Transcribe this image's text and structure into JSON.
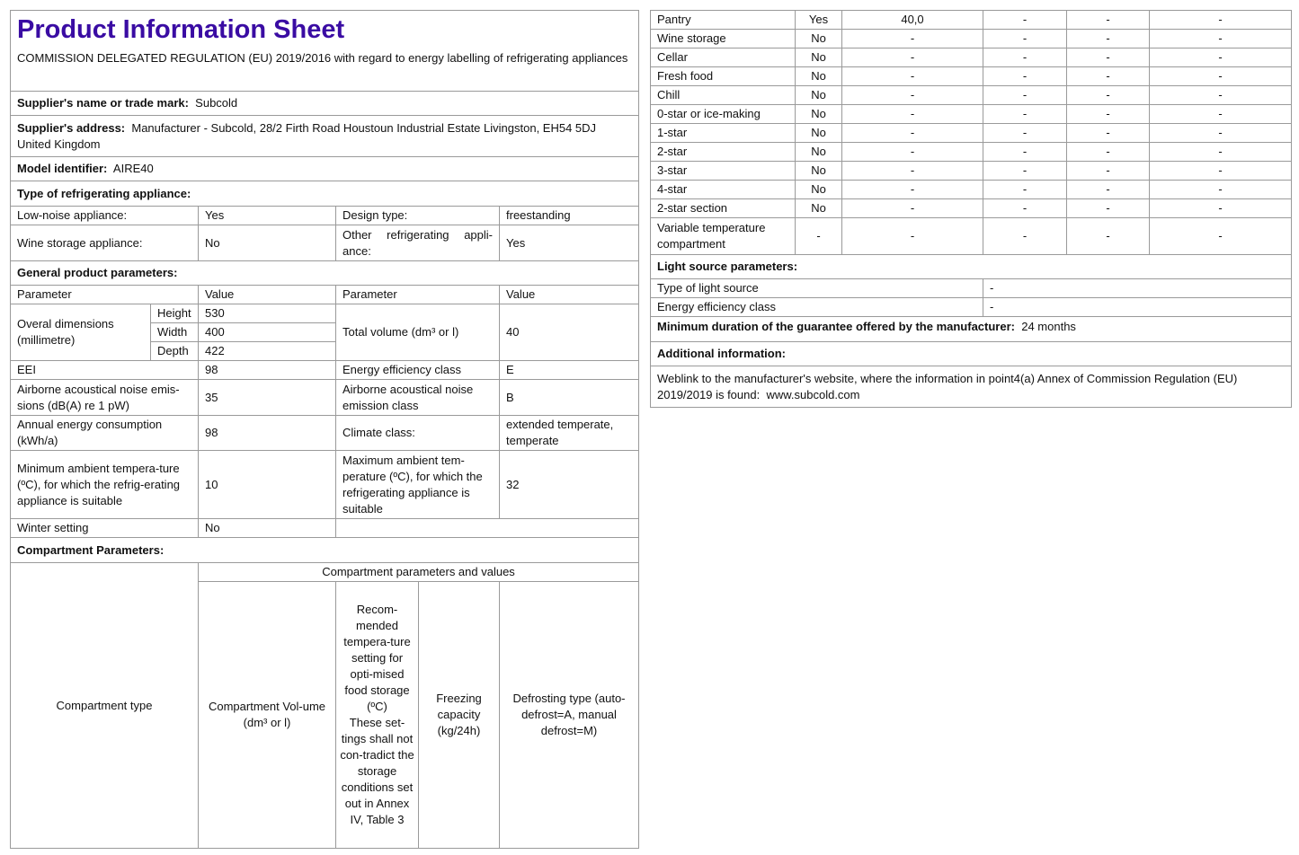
{
  "title": "Product Information Sheet",
  "regulation": "COMMISSION DELEGATED REGULATION (EU) 2019/2016 with regard to energy labelling of refrigerating appliances",
  "supplier_name": {
    "label": "Supplier's name or trade mark:",
    "value": "Subcold"
  },
  "supplier_address": {
    "label": "Supplier's address:",
    "value": "Manufacturer - Subcold, 28/2 Firth Road Houstoun Industrial Estate Livingston, EH54 5DJ United Kingdom"
  },
  "model": {
    "label": "Model identifier:",
    "value": "AIRE40"
  },
  "type_heading": "Type of refrigerating appliance:",
  "type": {
    "low_noise_label": "Low-noise appliance:",
    "low_noise": "Yes",
    "design_label": "Design type:",
    "design": "freestanding",
    "wine_label": "Wine storage appliance:",
    "wine": "No",
    "other_label": "Other refrigerating appli-ance:",
    "other": "Yes"
  },
  "general_heading": "General product parameters:",
  "general": {
    "param_h": "Parameter",
    "value_h": "Value",
    "dims_label": "Overal dimensions (millimetre)",
    "height_label": "Height",
    "height": "530",
    "width_label": "Width",
    "width": "400",
    "depth_label": "Depth",
    "depth": "422",
    "volume_label": "Total volume (dm³ or l)",
    "volume": "40",
    "eei_label": "EEI",
    "eei": "98",
    "eclass_label": "Energy efficiency class",
    "eclass": "E",
    "noise_label": "Airborne acoustical noise emis-sions (dB(A) re 1 pW)",
    "noise": "35",
    "noise_class_label": "Airborne acoustical noise emission class",
    "noise_class": "B",
    "annual_label": "Annual energy consumption (kWh/a)",
    "annual": "98",
    "climate_label": "Climate class:",
    "climate": "extended temperate, temperate",
    "min_amb_label": "Minimum ambient tempera-ture (ºC), for which the refrig-erating appliance is suitable",
    "min_amb": "10",
    "max_amb_label": "Maximum ambient tem-perature (ºC), for which the refrigerating appliance is suitable",
    "max_amb": "32",
    "winter_label": "Winter setting",
    "winter": "No"
  },
  "compartment_heading": "Compartment Parameters:",
  "compartment_headers": {
    "type": "Compartment type",
    "group": "Compartment parameters and values",
    "volume": "Compartment Vol-ume (dm³ or l)",
    "temp": "Recom-mended tempera-ture setting for opti-mised food storage (ºC)",
    "temp_note": "These set-tings shall not con-tradict the storage conditions set out in Annex IV, Table 3",
    "freezing": "Freezing capacity (kg/24h)",
    "defrost": "Defrosting type (auto-defrost=A, manual defrost=M)"
  },
  "compartments": [
    [
      "Pantry",
      "Yes",
      "40,0",
      "-",
      "-",
      "-"
    ],
    [
      "Wine storage",
      "No",
      "-",
      "-",
      "-",
      "-"
    ],
    [
      "Cellar",
      "No",
      "-",
      "-",
      "-",
      "-"
    ],
    [
      "Fresh food",
      "No",
      "-",
      "-",
      "-",
      "-"
    ],
    [
      "Chill",
      "No",
      "-",
      "-",
      "-",
      "-"
    ],
    [
      "0-star or ice-making",
      "No",
      "-",
      "-",
      "-",
      "-"
    ],
    [
      "1-star",
      "No",
      "-",
      "-",
      "-",
      "-"
    ],
    [
      "2-star",
      "No",
      "-",
      "-",
      "-",
      "-"
    ],
    [
      "3-star",
      "No",
      "-",
      "-",
      "-",
      "-"
    ],
    [
      "4-star",
      "No",
      "-",
      "-",
      "-",
      "-"
    ],
    [
      "2-star section",
      "No",
      "-",
      "-",
      "-",
      "-"
    ],
    [
      "Variable temperature compartment",
      "-",
      "-",
      "-",
      "-",
      "-"
    ]
  ],
  "light_heading": "Light source parameters:",
  "light": {
    "type_label": "Type of light source",
    "type": "-",
    "class_label": "Energy efficiency class",
    "class": "-"
  },
  "guarantee": {
    "label": "Minimum duration of the guarantee offered by the manufacturer:",
    "value": "24 months"
  },
  "additional_heading": "Additional information:",
  "weblink": {
    "text": "Weblink to the manufacturer's website, where the information in point4(a) Annex of Commission Regulation (EU) 2019/2019 is found:",
    "url": "www.subcold.com"
  },
  "colors": {
    "title": "#3a0ca3",
    "border": "#9a9a9a"
  }
}
